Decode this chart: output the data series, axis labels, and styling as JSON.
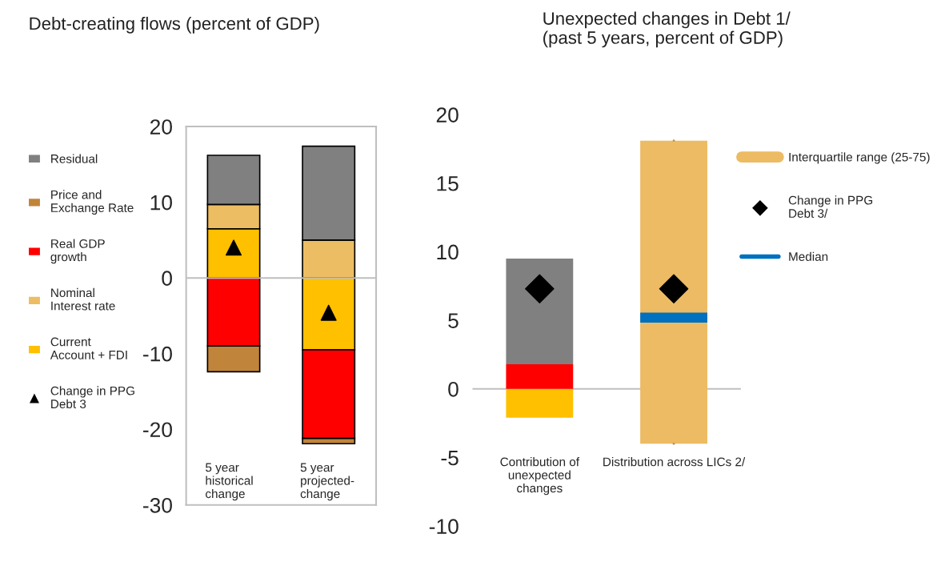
{
  "chart_data": [
    {
      "type": "bar",
      "title": "Debt-creating flows (percent of GDP)",
      "stacked": true,
      "categories": [
        "5 year\nhistorical\nchange",
        "5 year\nprojected-\nchange"
      ],
      "ylim": [
        -30,
        20
      ],
      "yticks": [
        -30,
        -20,
        -10,
        0,
        10,
        20
      ],
      "grid": false,
      "legend": "left",
      "ref_lines": [
        {
          "axis": "y",
          "value": 0,
          "color": "#bfbfbf"
        }
      ],
      "series": [
        {
          "name": "Current\nAccount + FDI",
          "color": "#ffc000",
          "values": [
            6.5,
            -9.5
          ]
        },
        {
          "name": "Nominal\nInterest rate",
          "color": "#ecbd62",
          "values": [
            3.2,
            5.0
          ]
        },
        {
          "name": "Real GDP\ngrowth",
          "color": "#ff0000",
          "values": [
            -9.0,
            -11.7
          ]
        },
        {
          "name": "Price and\nExchange Rate",
          "color": "#c0843a",
          "values": [
            -3.4,
            -0.7
          ]
        },
        {
          "name": "Residual",
          "color": "#808080",
          "values": [
            6.5,
            12.4
          ]
        },
        {
          "name": "Change in PPG\nDebt 3",
          "type": "scatter",
          "marker": "triangle",
          "color": "#000000",
          "x": [
            "5 year\nhistorical\nchange",
            "5 year\nprojected-\nchange"
          ],
          "values": [
            4.0,
            -4.6
          ]
        }
      ]
    },
    {
      "type": "bar",
      "title": "Unexpected changes in Debt 1/\n(past 5 years, percent of GDP)",
      "stacked": true,
      "annotations": [
        "Median"
      ],
      "categories": [
        "Contribution of\nunexpected\nchanges",
        "Distribution across LICs 2/"
      ],
      "ylim": [
        -10,
        20
      ],
      "yticks": [
        -10,
        -5,
        0,
        5,
        10,
        15,
        20
      ],
      "grid": false,
      "legend": "right",
      "ref_lines": [
        {
          "axis": "y",
          "value": 0,
          "color": "#bfbfbf"
        }
      ],
      "series": [
        {
          "color": "#ffc000",
          "values": [
            -2.1,
            null
          ]
        },
        {
          "color": "#ff0000",
          "values": [
            1.8,
            null
          ]
        },
        {
          "color": "#808080",
          "values": [
            7.7,
            null
          ]
        },
        {
          "name": "Interquartile range (25-75)",
          "type": "box",
          "color": "#ecbb63",
          "boxes": [
            null,
            {
              "low": -4.0,
              "q1": -4.0,
              "median": 5.2,
              "q3": 18.1,
              "high": 18.1
            }
          ]
        },
        {
          "name": "Change in PPG\nDebt 3/",
          "type": "scatter",
          "marker": "diamond",
          "color": "#000000",
          "x": [
            "Contribution of\nunexpected\nchanges",
            "Distribution across LICs 2/"
          ],
          "values": [
            7.3,
            7.3
          ]
        }
      ]
    }
  ]
}
